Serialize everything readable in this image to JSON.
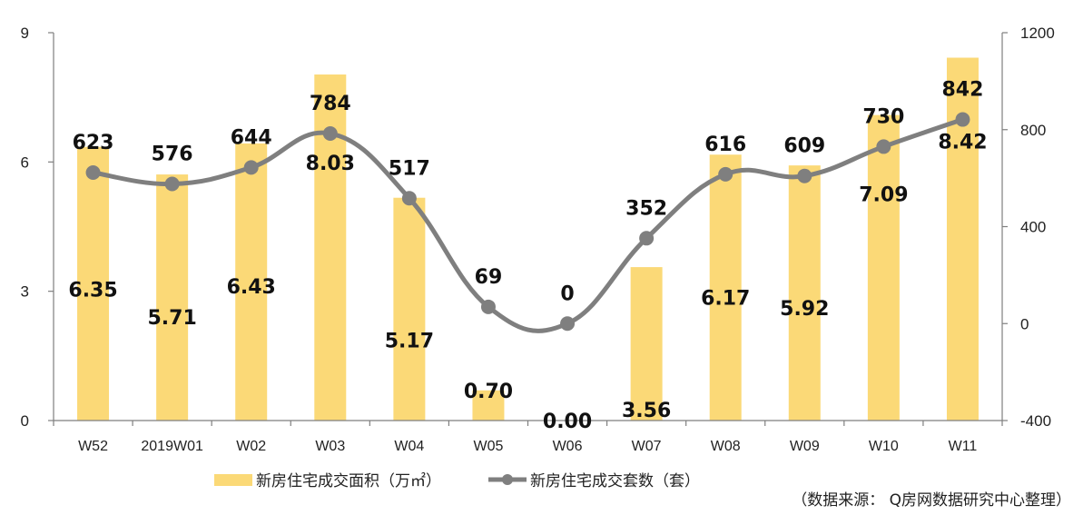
{
  "chart_data": {
    "type": "bar",
    "categories": [
      "W52",
      "2019W01",
      "W02",
      "W03",
      "W04",
      "W05",
      "W06",
      "W07",
      "W08",
      "W09",
      "W10",
      "W11"
    ],
    "series": [
      {
        "name": "新房住宅成交面积（万㎡）",
        "type": "bar",
        "axis": "left",
        "values": [
          6.35,
          5.71,
          6.43,
          8.03,
          5.17,
          0.7,
          0.0,
          3.56,
          6.17,
          5.92,
          7.09,
          8.42
        ],
        "labels": [
          "6.35",
          "5.71",
          "6.43",
          "8.03",
          "5.17",
          "0.70",
          "0.00",
          "3.56",
          "6.17",
          "5.92",
          "7.09",
          "8.42"
        ]
      },
      {
        "name": "新房住宅成交套数（套）",
        "type": "line",
        "axis": "right",
        "values": [
          623,
          576,
          644,
          784,
          517,
          69,
          0,
          352,
          616,
          609,
          730,
          842
        ],
        "labels": [
          "623",
          "576",
          "644",
          "784",
          "517",
          "69",
          "0",
          "352",
          "616",
          "609",
          "730",
          "842"
        ]
      }
    ],
    "y_left": {
      "min": 0,
      "max": 9,
      "ticks": [
        "0",
        "3",
        "6",
        "9"
      ]
    },
    "y_right": {
      "min": -400,
      "max": 1200,
      "ticks": [
        "-400",
        "0",
        "400",
        "800",
        "1200"
      ]
    },
    "legend_position": "bottom",
    "source": "（数据来源： Q房网数据研究中心整理）",
    "colors": {
      "bar": "#fbd977",
      "line": "#7f7f7f",
      "axis": "#7f7f7f"
    }
  }
}
